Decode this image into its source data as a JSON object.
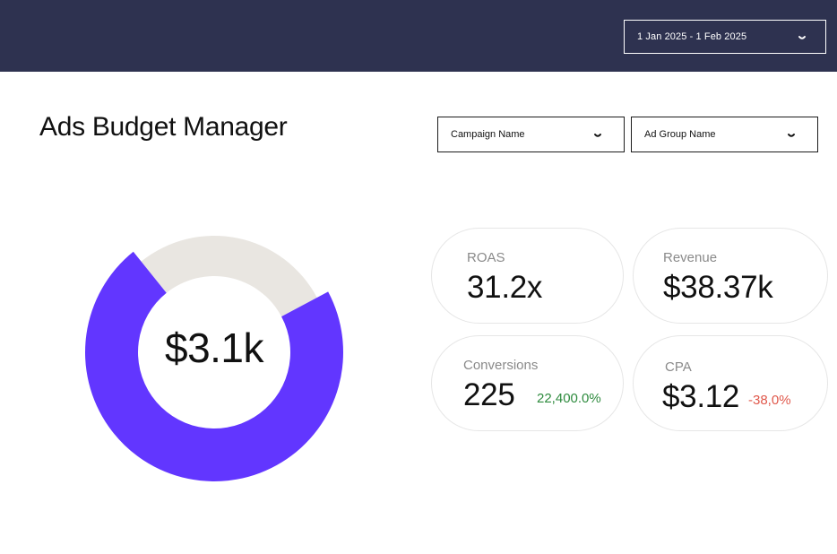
{
  "header": {
    "date_range": "1 Jan 2025 - 1 Feb 2025"
  },
  "page": {
    "title": "Ads Budget Manager"
  },
  "filters": {
    "campaign_label": "Campaign Name",
    "ad_group_label": "Ad Group Name"
  },
  "budget": {
    "spent_label": "$3.1k",
    "spent_fraction": 0.72,
    "spent_color": "#6236ff",
    "remaining_color": "#e9e6e1"
  },
  "metrics": {
    "roas": {
      "label": "ROAS",
      "value": "31.2x"
    },
    "revenue": {
      "label": "Revenue",
      "value": "$38.37k"
    },
    "conversions": {
      "label": "Conversions",
      "value": "225",
      "delta": "22,400.0%",
      "delta_color": "#2e8b3e"
    },
    "cpa": {
      "label": "CPA",
      "value": "$3.12",
      "delta": "-38,0%",
      "delta_color": "#e0584b"
    }
  },
  "icons": {
    "caret": "chevron-down-icon"
  },
  "colors": {
    "header_bg": "#2e3250"
  }
}
